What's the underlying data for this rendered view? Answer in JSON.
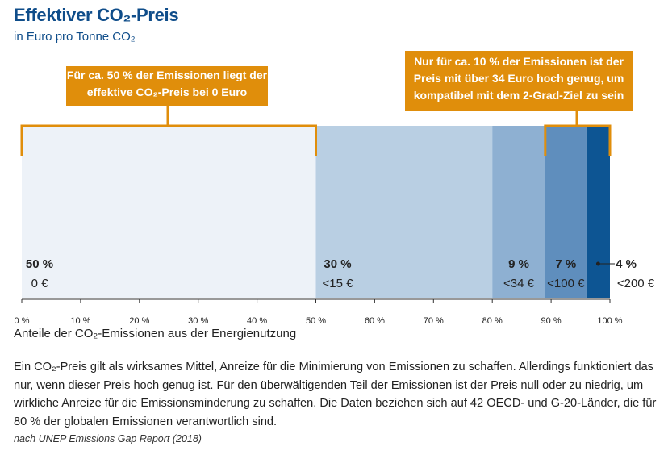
{
  "title": "Effektiver CO₂-Preis",
  "subtitle": "in Euro pro Tonne CO₂",
  "callouts": {
    "left": "Für ca. 50 % der Emissionen liegt der effektive CO₂-Preis bei 0 Euro",
    "right": "Nur für ca. 10 % der Emissionen ist der Preis mit über 34 Euro hoch genug, um kompatibel mit dem 2-Grad-Ziel zu sein"
  },
  "colors": {
    "callout": "#e08e0b",
    "title": "#0f4d8a"
  },
  "chart_data": {
    "type": "bar",
    "orientation": "horizontal-stacked",
    "xlabel": "Anteile der CO₂-Emissionen aus der Energienutzung",
    "xlim": [
      0,
      100
    ],
    "ticks": [
      "0 %",
      "10 %",
      "20 %",
      "30 %",
      "40 %",
      "50 %",
      "60 %",
      "70 %",
      "80 %",
      "90 %",
      "100 %"
    ],
    "tick_values": [
      0,
      10,
      20,
      30,
      40,
      50,
      60,
      70,
      80,
      90,
      100
    ],
    "segments": [
      {
        "value": 50,
        "label": "50 %",
        "price": "0 €",
        "color": "#edf2f8"
      },
      {
        "value": 30,
        "label": "30 %",
        "price": "<15 €",
        "color": "#b9cfe3"
      },
      {
        "value": 9,
        "label": "9 %",
        "price": "<34 €",
        "color": "#8eb0d2"
      },
      {
        "value": 7,
        "label": "7 %",
        "price": "<100 €",
        "color": "#5f8ebd"
      },
      {
        "value": 4,
        "label": "4 %",
        "price": "<200 €",
        "color": "#0d5593"
      }
    ],
    "brackets": [
      {
        "from": 0,
        "to": 50
      },
      {
        "from": 89,
        "to": 100
      }
    ]
  },
  "text": {
    "paragraph": "Ein CO₂-Preis gilt als wirksames Mittel, Anreize für die Minimierung von Emissionen zu schaffen. Allerdings funktioniert das nur, wenn dieser Preis hoch genug ist. Für den überwältigenden Teil der Emissionen ist der Preis null oder zu niedrig, um wirkliche Anreize für die Emissionsminderung zu schaffen. Die Daten beziehen sich auf 42 OECD- und G-20-Länder, die für 80 % der globalen Emissionen verantwortlich sind.",
    "source": "nach UNEP Emissions Gap Report (2018)"
  }
}
